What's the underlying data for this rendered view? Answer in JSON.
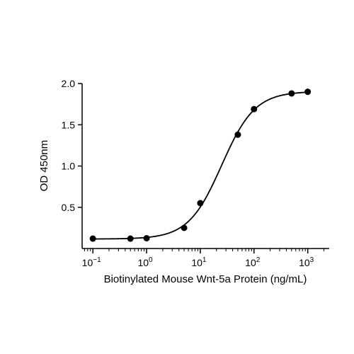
{
  "chart_data": {
    "type": "scatter",
    "xscale": "log",
    "xlabel": "Biotinylated Mouse Wnt-5a Protein (ng/mL)",
    "ylabel": "OD 450nm",
    "xlim": [
      0.0631,
      2512
    ],
    "ylim": [
      0.0,
      2.0
    ],
    "x_ticks": [
      {
        "value": 0.1,
        "base": "10",
        "exp": "−1"
      },
      {
        "value": 1,
        "base": "10",
        "exp": "0"
      },
      {
        "value": 10,
        "base": "10",
        "exp": "1"
      },
      {
        "value": 100,
        "base": "10",
        "exp": "2"
      },
      {
        "value": 1000,
        "base": "10",
        "exp": "3"
      }
    ],
    "y_ticks": [
      {
        "value": 0.5,
        "label": "0.5"
      },
      {
        "value": 1.0,
        "label": "1.0"
      },
      {
        "value": 1.5,
        "label": "1.5"
      },
      {
        "value": 2.0,
        "label": "2.0"
      }
    ],
    "grid": false,
    "legend": "none",
    "series": [
      {
        "x": [
          0.1,
          0.5,
          1,
          5,
          10,
          50,
          100,
          500,
          1000
        ],
        "y": [
          0.12,
          0.12,
          0.125,
          0.25,
          0.55,
          1.38,
          1.69,
          1.88,
          1.9
        ]
      }
    ],
    "fit": {
      "model": "4PL",
      "bottom": 0.115,
      "top": 1.905,
      "ec50": 25.0,
      "hill": 1.4
    },
    "colors": {
      "points": "#000000",
      "curve": "#000000",
      "axes": "#000000"
    }
  }
}
